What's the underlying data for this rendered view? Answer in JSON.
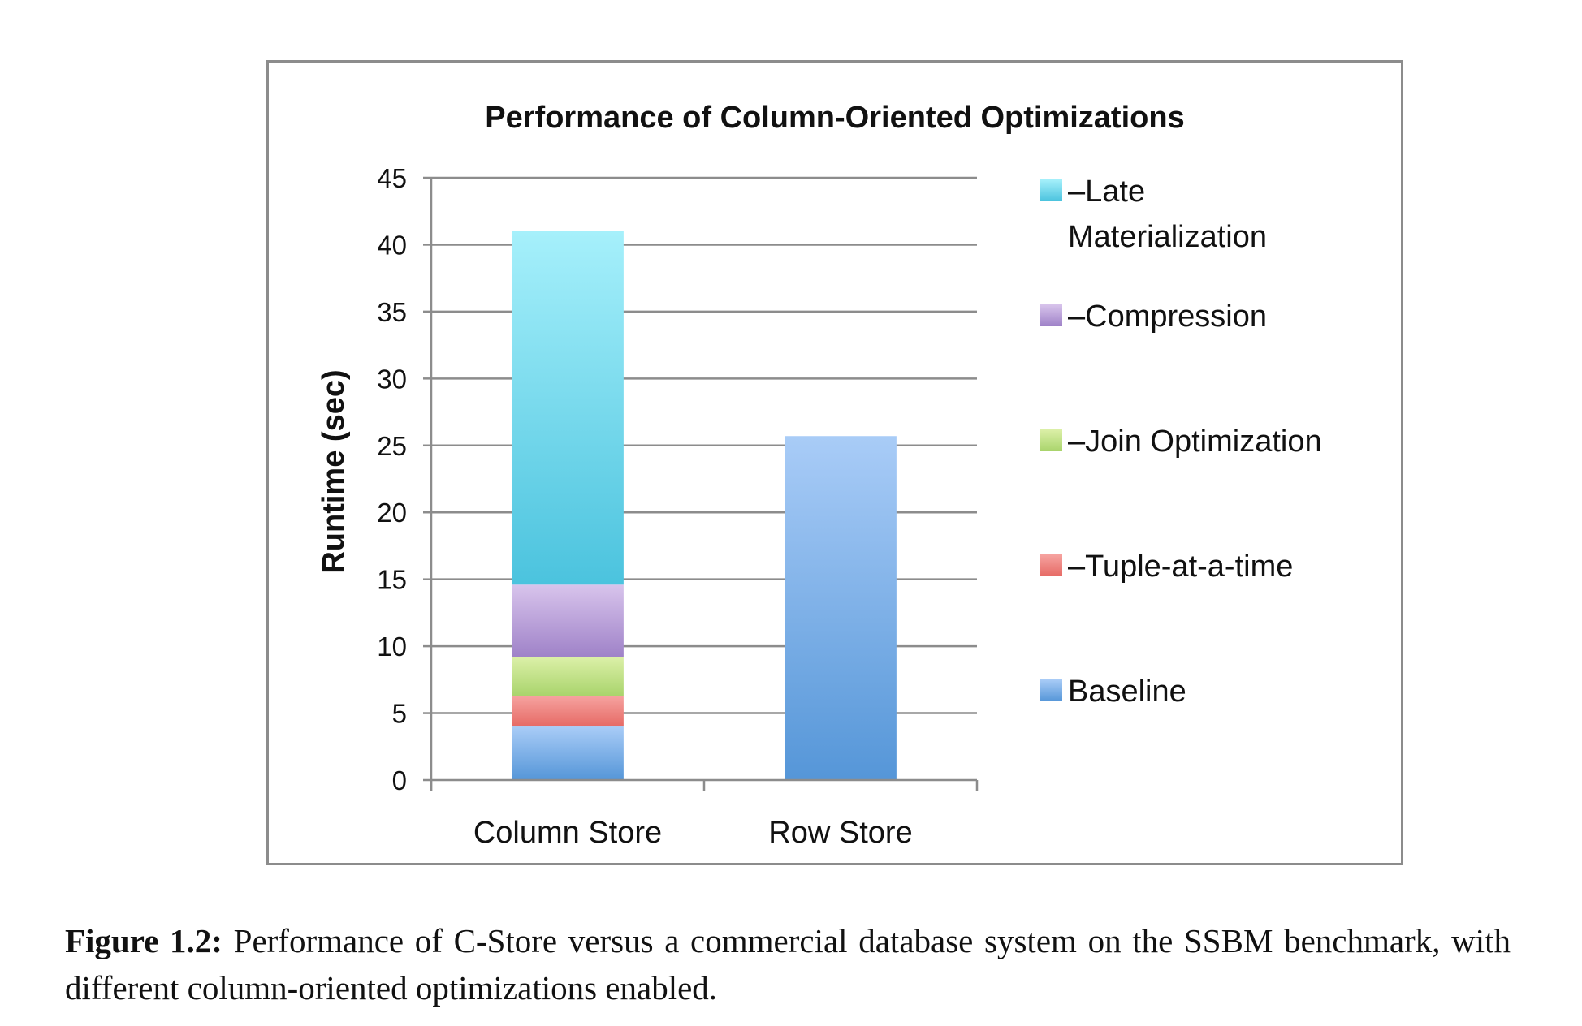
{
  "chart_data": {
    "type": "bar",
    "stacked": true,
    "title": "Performance of Column-Oriented Optimizations",
    "xlabel": "",
    "ylabel": "Runtime (sec)",
    "ylim": [
      0,
      45
    ],
    "yticks": [
      0,
      5,
      10,
      15,
      20,
      25,
      30,
      35,
      40,
      45
    ],
    "grid": true,
    "legend_position": "right",
    "categories": [
      "Column Store",
      "Row Store"
    ],
    "series": [
      {
        "name": "Baseline",
        "values": [
          4.0,
          25.7
        ],
        "color_top": "#a9ccf7",
        "color_bottom": "#5596d8"
      },
      {
        "name": "–Tuple-at-a-time",
        "values": [
          2.3,
          0
        ],
        "color_top": "#f6a3a0",
        "color_bottom": "#e66a65"
      },
      {
        "name": "–Join Optimization",
        "values": [
          2.9,
          0
        ],
        "color_top": "#dcf0a8",
        "color_bottom": "#a9d46c"
      },
      {
        "name": "–Compression",
        "values": [
          5.4,
          0
        ],
        "color_top": "#d8c4ec",
        "color_bottom": "#9f82c8"
      },
      {
        "name": "–Late Materialization",
        "values": [
          26.4,
          0
        ],
        "color_top": "#a6f0fb",
        "color_bottom": "#4bc3de"
      }
    ],
    "legend_order": [
      "–Late Materialization",
      "–Compression",
      "–Join Optimization",
      "–Tuple-at-a-time",
      "Baseline"
    ],
    "legend_lines": {
      "–Late Materialization": [
        "–Late",
        "Materialization"
      ]
    }
  },
  "caption": {
    "label": "Figure 1.2:",
    "text": "Performance of C-Store versus a commercial database system on the SSBM benchmark, with different column-oriented optimizations enabled."
  }
}
